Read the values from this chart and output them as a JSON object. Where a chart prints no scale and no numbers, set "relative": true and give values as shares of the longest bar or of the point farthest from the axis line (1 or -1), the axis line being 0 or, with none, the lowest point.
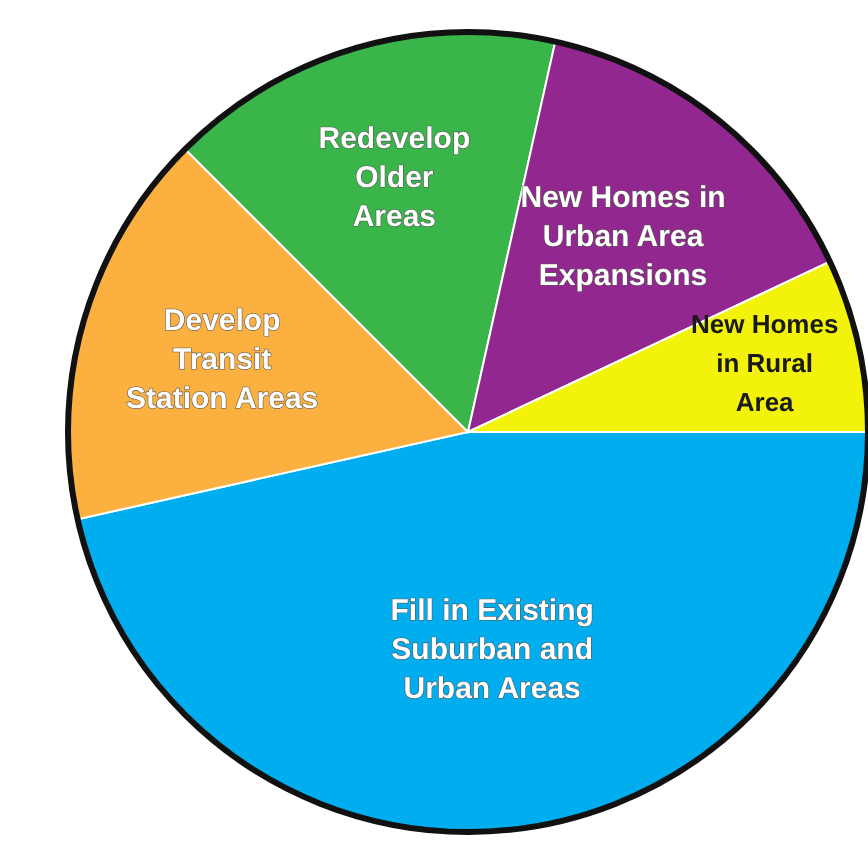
{
  "chart_data": {
    "type": "pie",
    "relative": true,
    "categories": [
      "Fill in Existing Suburban and Urban Areas",
      "Develop Transit Station Areas",
      "Redevelop Older Areas",
      "New Homes in Urban Area Expansions",
      "New Homes in Rural Area"
    ],
    "values": [
      46.5,
      16,
      16,
      14.5,
      7
    ],
    "colors": [
      "#00aeef",
      "#fbb040",
      "#39b54a",
      "#92278f",
      "#f2f20a"
    ]
  }
}
